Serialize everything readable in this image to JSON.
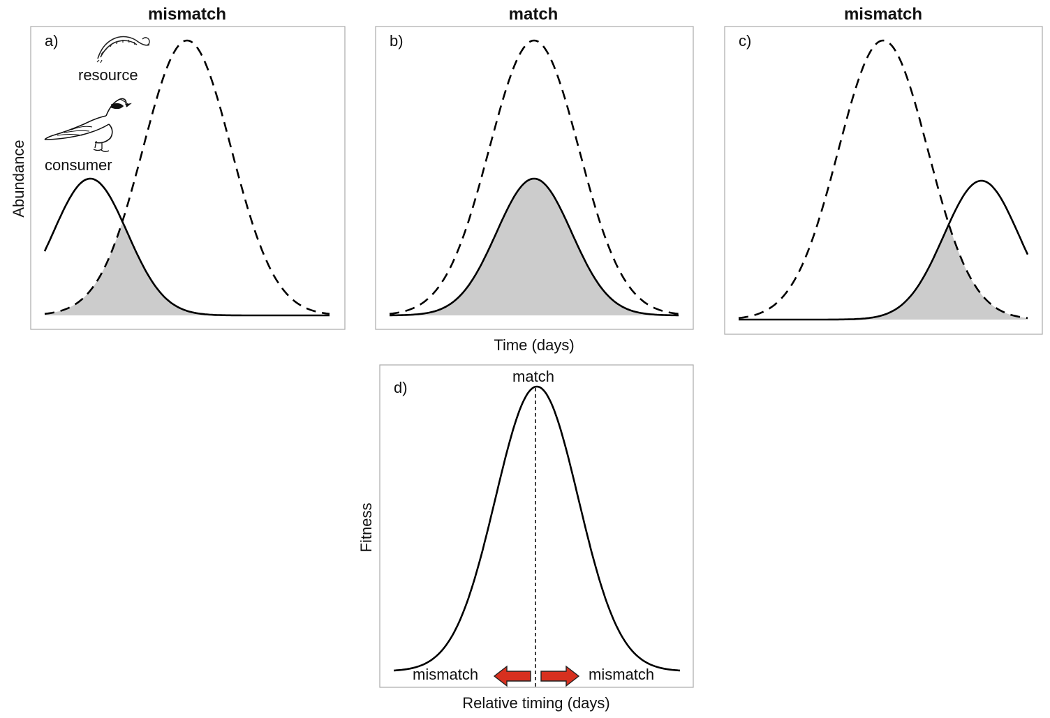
{
  "colors": {
    "mismatch_red": "#d7191c",
    "arrow_fill": "#d7301f",
    "shade": "#cccccc",
    "curve": "#000000"
  },
  "panels": [
    {
      "id": "a",
      "label": "a)",
      "title": "mismatch",
      "title_color": "#d7191c",
      "consumer_peak": -0.34,
      "resource_peak": 0.0
    },
    {
      "id": "b",
      "label": "b)",
      "title": "match",
      "title_color": "#000000",
      "consumer_peak": 0.0,
      "resource_peak": 0.0
    },
    {
      "id": "c",
      "label": "c)",
      "title": "mismatch",
      "title_color": "#d7191c",
      "consumer_peak": 0.34,
      "resource_peak": 0.0
    }
  ],
  "legend": {
    "resource": "resource",
    "consumer": "consumer",
    "resource_icon": "caterpillar-icon",
    "consumer_icon": "bird-icon"
  },
  "axes": {
    "abundance": "Abundance",
    "time": "Time (days)",
    "fitness": "Fitness",
    "relative_timing": "Relative timing (days)"
  },
  "panel_d": {
    "label": "d)",
    "peak_label": "match",
    "left_label": "mismatch",
    "right_label": "mismatch"
  }
}
